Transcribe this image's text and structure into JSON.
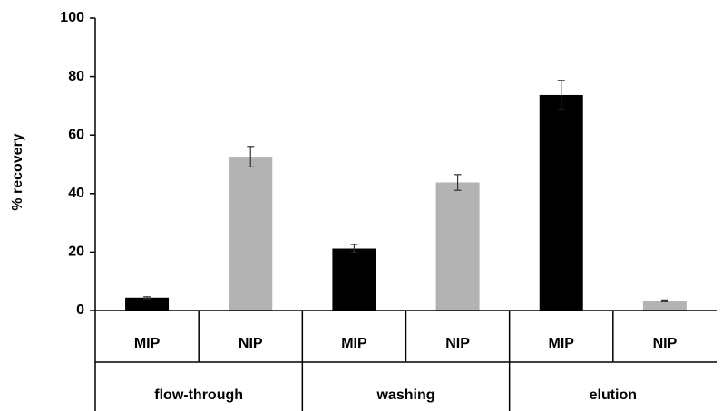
{
  "chart_data": {
    "type": "bar",
    "y_label": "% recovery",
    "ylim": [
      0,
      100
    ],
    "yticks": [
      0,
      20,
      40,
      60,
      80,
      100
    ],
    "groups": [
      {
        "name": "flow-through",
        "bars": [
          {
            "label": "MIP",
            "value": 4.4,
            "error": 0.3,
            "color": "#000000"
          },
          {
            "label": "NIP",
            "value": 52.6,
            "error": 3.5,
            "color": "#b3b3b3"
          }
        ]
      },
      {
        "name": "washing",
        "bars": [
          {
            "label": "MIP",
            "value": 21.2,
            "error": 1.4,
            "color": "#000000"
          },
          {
            "label": "NIP",
            "value": 43.8,
            "error": 2.7,
            "color": "#b3b3b3"
          }
        ]
      },
      {
        "name": "elution",
        "bars": [
          {
            "label": "MIP",
            "value": 73.7,
            "error": 5.0,
            "color": "#000000"
          },
          {
            "label": "NIP",
            "value": 3.3,
            "error": 0.3,
            "color": "#b3b3b3"
          }
        ]
      }
    ]
  }
}
